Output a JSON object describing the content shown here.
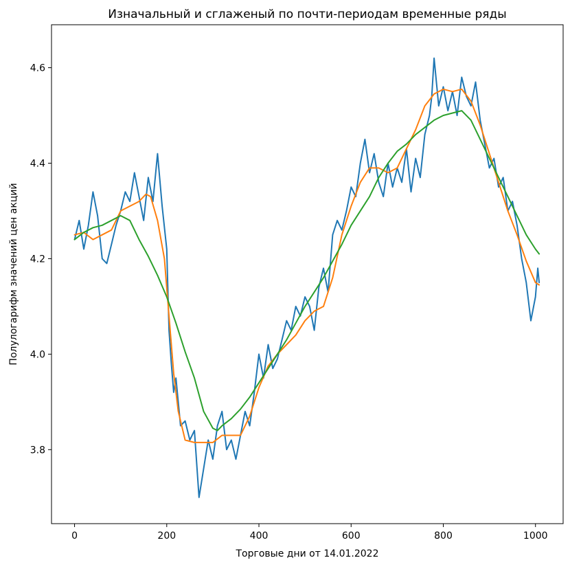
{
  "chart_data": {
    "type": "line",
    "title": "Изначальный и сглаженый по почти-периодам временные ряды",
    "xlabel": "Торговые дни от 14.01.2022",
    "ylabel": "Полулогарифм значений цен акций",
    "xlim": [
      -50,
      1060
    ],
    "ylim": [
      3.645,
      4.69
    ],
    "xticks": [
      0,
      200,
      400,
      600,
      800,
      1000
    ],
    "xtick_labels": [
      "0",
      "200",
      "400",
      "600",
      "800",
      "1000"
    ],
    "yticks": [
      3.8,
      4.0,
      4.2,
      4.4,
      4.6
    ],
    "ytick_labels": [
      "3.8",
      "4.0",
      "4.2",
      "4.4",
      "4.6"
    ],
    "grid": false,
    "legend": "none",
    "series": [
      {
        "color": "#1f77b4",
        "x": [
          0,
          10,
          20,
          30,
          40,
          50,
          60,
          70,
          80,
          90,
          100,
          110,
          120,
          130,
          140,
          150,
          160,
          170,
          180,
          190,
          200,
          205,
          210,
          215,
          220,
          230,
          240,
          250,
          260,
          270,
          280,
          290,
          300,
          310,
          320,
          330,
          340,
          350,
          360,
          370,
          380,
          390,
          400,
          410,
          420,
          430,
          440,
          450,
          460,
          470,
          480,
          490,
          500,
          510,
          520,
          530,
          540,
          550,
          560,
          570,
          580,
          590,
          600,
          610,
          620,
          630,
          640,
          650,
          660,
          670,
          680,
          690,
          700,
          710,
          720,
          730,
          740,
          750,
          760,
          770,
          775,
          780,
          790,
          800,
          810,
          820,
          830,
          840,
          850,
          860,
          870,
          880,
          890,
          900,
          910,
          920,
          930,
          940,
          950,
          960,
          970,
          980,
          990,
          1000,
          1005,
          1008
        ],
        "y": [
          4.24,
          4.28,
          4.22,
          4.27,
          4.34,
          4.29,
          4.2,
          4.19,
          4.23,
          4.27,
          4.3,
          4.34,
          4.32,
          4.38,
          4.33,
          4.28,
          4.37,
          4.32,
          4.42,
          4.31,
          4.22,
          4.05,
          3.98,
          3.92,
          3.95,
          3.85,
          3.86,
          3.82,
          3.84,
          3.7,
          3.76,
          3.82,
          3.78,
          3.85,
          3.88,
          3.8,
          3.82,
          3.78,
          3.83,
          3.88,
          3.85,
          3.92,
          4.0,
          3.95,
          4.02,
          3.97,
          3.99,
          4.03,
          4.07,
          4.05,
          4.1,
          4.08,
          4.12,
          4.1,
          4.05,
          4.14,
          4.18,
          4.13,
          4.25,
          4.28,
          4.26,
          4.3,
          4.35,
          4.33,
          4.4,
          4.45,
          4.38,
          4.42,
          4.36,
          4.33,
          4.4,
          4.35,
          4.39,
          4.36,
          4.43,
          4.34,
          4.41,
          4.37,
          4.46,
          4.5,
          4.54,
          4.62,
          4.52,
          4.56,
          4.51,
          4.55,
          4.5,
          4.58,
          4.54,
          4.52,
          4.57,
          4.49,
          4.44,
          4.39,
          4.41,
          4.35,
          4.37,
          4.3,
          4.32,
          4.27,
          4.2,
          4.15,
          4.07,
          4.12,
          4.18,
          4.15
        ]
      },
      {
        "color": "#ff7f0e",
        "x": [
          0,
          20,
          40,
          60,
          80,
          100,
          120,
          140,
          155,
          165,
          180,
          195,
          205,
          215,
          225,
          240,
          260,
          280,
          300,
          320,
          340,
          360,
          380,
          400,
          420,
          440,
          460,
          480,
          500,
          520,
          540,
          560,
          580,
          600,
          620,
          640,
          660,
          680,
          700,
          720,
          740,
          760,
          780,
          800,
          820,
          840,
          860,
          880,
          900,
          920,
          940,
          960,
          980,
          1000,
          1008
        ],
        "y": [
          4.25,
          4.255,
          4.24,
          4.25,
          4.26,
          4.3,
          4.31,
          4.32,
          4.335,
          4.33,
          4.28,
          4.2,
          4.08,
          3.96,
          3.88,
          3.82,
          3.815,
          3.815,
          3.815,
          3.83,
          3.83,
          3.83,
          3.87,
          3.93,
          3.975,
          4.0,
          4.02,
          4.04,
          4.07,
          4.09,
          4.1,
          4.16,
          4.25,
          4.31,
          4.36,
          4.39,
          4.39,
          4.38,
          4.39,
          4.43,
          4.47,
          4.52,
          4.545,
          4.555,
          4.55,
          4.555,
          4.53,
          4.48,
          4.42,
          4.36,
          4.3,
          4.25,
          4.195,
          4.15,
          4.145
        ]
      },
      {
        "color": "#2ca02c",
        "x": [
          0,
          20,
          40,
          60,
          80,
          100,
          120,
          140,
          160,
          180,
          200,
          220,
          240,
          260,
          280,
          300,
          310,
          320,
          340,
          360,
          380,
          400,
          420,
          440,
          460,
          480,
          500,
          520,
          540,
          560,
          580,
          600,
          620,
          640,
          660,
          680,
          700,
          720,
          740,
          760,
          780,
          800,
          820,
          840,
          860,
          880,
          900,
          920,
          940,
          960,
          980,
          1000,
          1008
        ],
        "y": [
          4.24,
          4.255,
          4.265,
          4.27,
          4.28,
          4.29,
          4.28,
          4.24,
          4.205,
          4.165,
          4.12,
          4.065,
          4.005,
          3.95,
          3.88,
          3.845,
          3.84,
          3.85,
          3.865,
          3.885,
          3.91,
          3.94,
          3.97,
          4.0,
          4.03,
          4.065,
          4.1,
          4.13,
          4.16,
          4.195,
          4.23,
          4.27,
          4.3,
          4.33,
          4.37,
          4.4,
          4.425,
          4.44,
          4.46,
          4.475,
          4.49,
          4.5,
          4.505,
          4.51,
          4.49,
          4.45,
          4.41,
          4.37,
          4.33,
          4.29,
          4.25,
          4.22,
          4.21
        ]
      }
    ]
  }
}
